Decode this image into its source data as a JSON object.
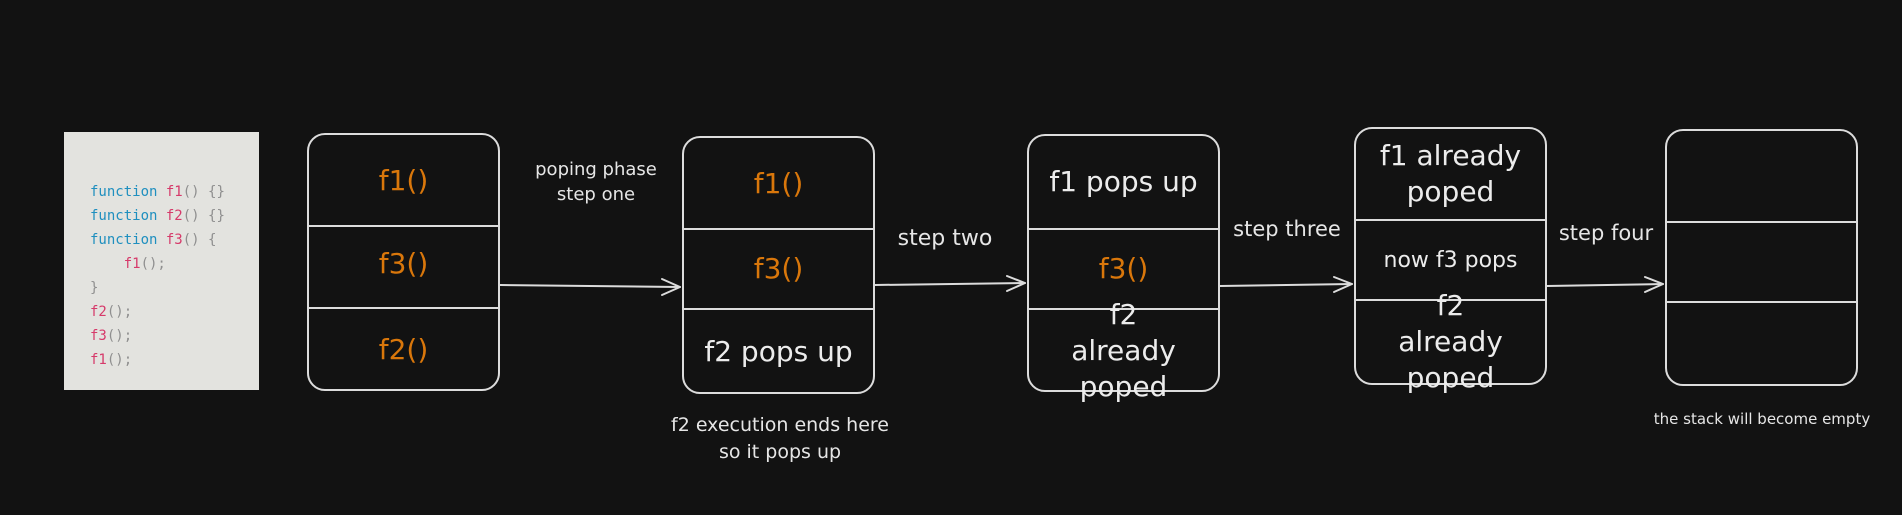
{
  "code": {
    "lines": [
      [
        {
          "t": "function",
          "c": "kw"
        },
        {
          "t": " "
        },
        {
          "t": "f1",
          "c": "fn"
        },
        {
          "t": "() {}",
          "c": "pn"
        }
      ],
      [
        {
          "t": "function",
          "c": "kw"
        },
        {
          "t": " "
        },
        {
          "t": "f2",
          "c": "fn"
        },
        {
          "t": "() {}",
          "c": "pn"
        }
      ],
      [
        {
          "t": "function",
          "c": "kw"
        },
        {
          "t": " "
        },
        {
          "t": "f3",
          "c": "fn"
        },
        {
          "t": "() {",
          "c": "pn"
        }
      ],
      [
        {
          "t": "    "
        },
        {
          "t": "f1",
          "c": "fn"
        },
        {
          "t": "();",
          "c": "pn"
        }
      ],
      [
        {
          "t": "}",
          "c": "pn"
        }
      ],
      [
        {
          "t": "f2",
          "c": "fn"
        },
        {
          "t": "();",
          "c": "pn"
        }
      ],
      [
        {
          "t": "f3",
          "c": "fn"
        },
        {
          "t": "();",
          "c": "pn"
        }
      ],
      [
        {
          "t": "f1",
          "c": "fn"
        },
        {
          "t": "();",
          "c": "pn"
        }
      ]
    ]
  },
  "stacks": [
    {
      "cells": [
        "f1()",
        "f3()",
        "f2()"
      ]
    },
    {
      "cells": [
        "f1()",
        "f3()",
        "f2 pops up"
      ]
    },
    {
      "cells": [
        "f1 pops up",
        "f3()",
        "f2 already poped"
      ]
    },
    {
      "cells": [
        "f1 already poped",
        "now f3 pops",
        "f2 already poped"
      ]
    },
    {
      "cells": [
        "",
        "",
        ""
      ]
    }
  ],
  "labels": {
    "step1_line1": "poping phase",
    "step1_line2": "step one",
    "step2": "step two",
    "step3": "step three",
    "step4": "step four",
    "note_f2_line1": "f2 execution ends here",
    "note_f2_line2": "so it pops up",
    "note_empty": "the stack will become empty"
  },
  "colors": {
    "background": "#121212",
    "function_name": "#d9770b",
    "stroke": "#dcdcdc"
  }
}
